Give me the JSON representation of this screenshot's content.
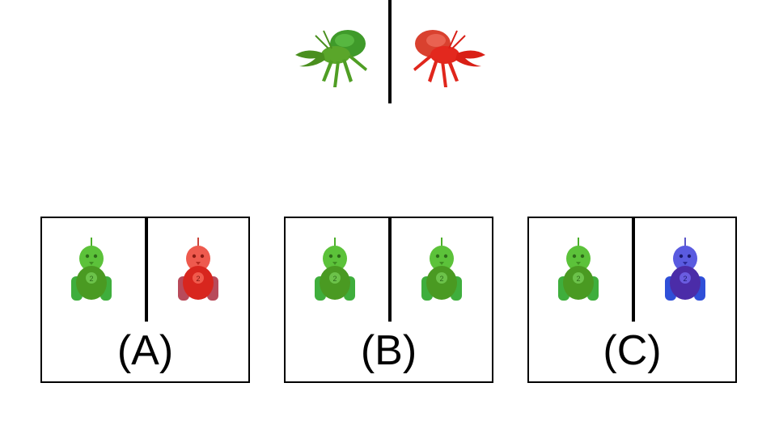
{
  "stimulus": {
    "left_creature": {
      "icon": "green-hermit-crab-icon",
      "color": "#4fa321"
    },
    "right_creature": {
      "icon": "red-hermit-crab-icon",
      "color": "#e0261c"
    }
  },
  "options": [
    {
      "label": "(A)",
      "left_robot": {
        "icon": "green-robot-icon",
        "color": "#4caf2a"
      },
      "right_robot": {
        "icon": "red-robot-icon",
        "color": "#e0322a"
      }
    },
    {
      "label": "(B)",
      "left_robot": {
        "icon": "green-robot-icon",
        "color": "#4caf2a"
      },
      "right_robot": {
        "icon": "green-robot-icon",
        "color": "#4caf2a"
      }
    },
    {
      "label": "(C)",
      "left_robot": {
        "icon": "green-robot-icon",
        "color": "#4caf2a"
      },
      "right_robot": {
        "icon": "blue-robot-icon",
        "color": "#3b3ad6"
      }
    }
  ]
}
